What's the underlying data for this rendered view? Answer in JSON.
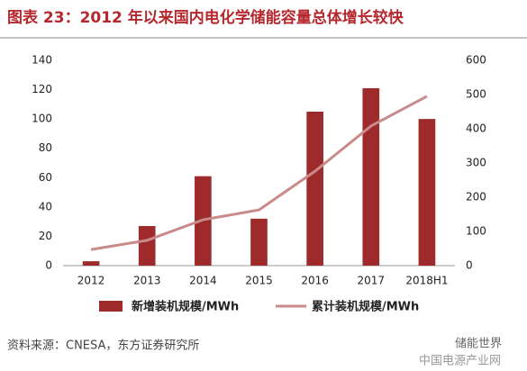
{
  "chart_data": {
    "type": "bar_line",
    "title": "图表 23：2012 年以来国内电化学储能容量总体增长较快",
    "categories": [
      "2012",
      "2013",
      "2014",
      "2015",
      "2016",
      "2017",
      "2018H1"
    ],
    "series": [
      {
        "name": "新增装机规模/MWh",
        "type": "bar",
        "color": "#9e2a2b",
        "values": [
          3,
          27,
          61,
          32,
          105,
          121,
          100
        ]
      },
      {
        "name": "累计装机规模/MWh",
        "type": "line",
        "axis": "y2",
        "color": "#c98a8a",
        "values": [
          47,
          74,
          134,
          163,
          276,
          408,
          495
        ]
      }
    ],
    "ylim": [
      0,
      140
    ],
    "yticks": [
      0,
      20,
      40,
      60,
      80,
      100,
      120,
      140
    ],
    "y2lim": [
      0,
      600
    ],
    "y2ticks": [
      0,
      100,
      200,
      300,
      400,
      500,
      600
    ],
    "grid": false,
    "legend": "bottom",
    "source": "资料来源：CNESA，东方证券研究所",
    "watermarks": [
      "储能世界",
      "中国电源产业网"
    ]
  }
}
